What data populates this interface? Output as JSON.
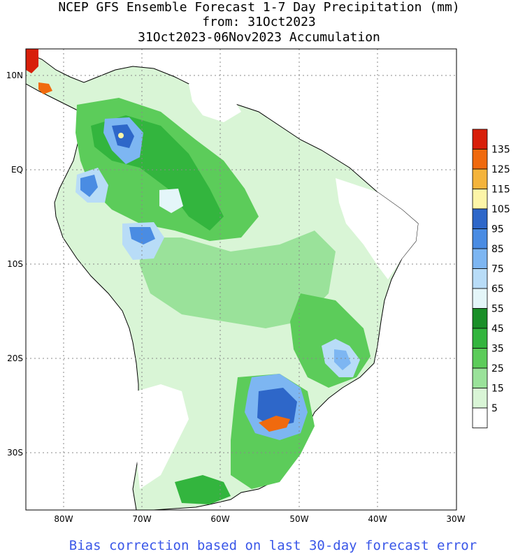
{
  "title": {
    "line1": "NCEP GFS Ensemble Forecast 1-7 Day Precipitation (mm)",
    "line2": "from: 31Oct2023",
    "line3": "31Oct2023-06Nov2023 Accumulation"
  },
  "footer": "Bias correction based on last 30-day forecast error",
  "axes": {
    "lat_labels": [
      "10N",
      "EQ",
      "10S",
      "20S",
      "30S"
    ],
    "lon_labels": [
      "80W",
      "70W",
      "60W",
      "50W",
      "40W",
      "30W"
    ]
  },
  "legend": {
    "labels": [
      "135",
      "125",
      "115",
      "105",
      "95",
      "85",
      "75",
      "65",
      "55",
      "45",
      "35",
      "25",
      "15",
      "5"
    ],
    "colors": [
      "#d81f0a",
      "#f06a0e",
      "#f4b43c",
      "#fdf5a8",
      "#2e67c9",
      "#4a8ce3",
      "#7db6f2",
      "#b8dcf7",
      "#e4f6f9",
      "#1a8f28",
      "#33b53e",
      "#5ccc5a",
      "#9ae29a",
      "#d9f5d6",
      "#ffffff"
    ]
  }
}
